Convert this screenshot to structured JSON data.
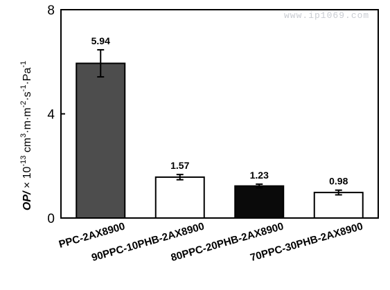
{
  "watermark": "www.ip1069.com",
  "chart_data": {
    "type": "bar",
    "categories": [
      "PPC-2AX8900",
      "90PPC-10PHB-2AX8900",
      "80PPC-20PHB-2AX8900",
      "70PPC-30PHB-2AX8900"
    ],
    "values": [
      5.94,
      1.57,
      1.23,
      0.98
    ],
    "errors": [
      0.52,
      0.1,
      0.07,
      0.09
    ],
    "data_labels": [
      "5.94",
      "1.57",
      "1.23",
      "0.98"
    ],
    "bar_colors": [
      "#4d4d4d",
      "#ffffff",
      "#0a0a0a",
      "#ffffff"
    ],
    "ylim": [
      0,
      8
    ],
    "yticks": [
      0,
      4,
      8
    ],
    "ylabel": {
      "italic_part": "OP/",
      "rest": " × 10",
      "exp1": "-13",
      "units_a": " cm",
      "exp2": "3",
      "units_b": "·m·m",
      "exp3": "-2",
      "units_c": "·s",
      "exp4": "-1",
      "units_d": "·Pa",
      "exp5": "-1"
    },
    "xlabel": "",
    "grid": false
  }
}
